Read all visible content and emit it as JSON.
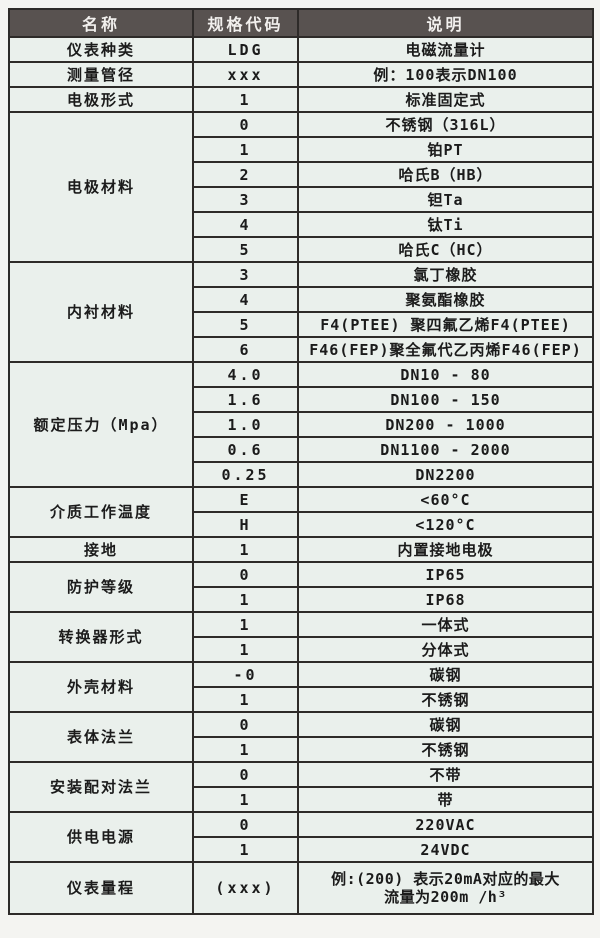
{
  "colors": {
    "header_bg": "#585250",
    "header_text": "#f2f0ee",
    "cell_bg": "#eaf0ec",
    "border": "#2e2b29",
    "page_bg": "#f4f4f1",
    "bottom_strip": "#bcbbb8"
  },
  "table": {
    "headers": [
      "名称",
      "规格代码",
      "说明"
    ],
    "sections": [
      {
        "name": "仪表种类",
        "rows": [
          {
            "code": "LDG",
            "desc": "电磁流量计"
          }
        ]
      },
      {
        "name": "测量管径",
        "rows": [
          {
            "code": "xxx",
            "desc": "例：100表示DN100"
          }
        ]
      },
      {
        "name": "电极形式",
        "rows": [
          {
            "code": "1",
            "desc": "标准固定式"
          }
        ]
      },
      {
        "name": "电极材料",
        "rows": [
          {
            "code": "0",
            "desc": "不锈钢（316L）"
          },
          {
            "code": "1",
            "desc": "铂PT"
          },
          {
            "code": "2",
            "desc": "哈氏B（HB）"
          },
          {
            "code": "3",
            "desc": "钽Ta"
          },
          {
            "code": "4",
            "desc": "钛Ti"
          },
          {
            "code": "5",
            "desc": "哈氏C（HC）"
          }
        ]
      },
      {
        "name": "内衬材料",
        "rows": [
          {
            "code": "3",
            "desc": "氯丁橡胶"
          },
          {
            "code": "4",
            "desc": "聚氨酯橡胶"
          },
          {
            "code": "5",
            "desc": "F4(PTEE) 聚四氟乙烯F4(PTEE)"
          },
          {
            "code": "6",
            "desc": "F46(FEP)聚全氟代乙丙烯F46(FEP)"
          }
        ]
      },
      {
        "name": "额定压力（Mpa）",
        "rows": [
          {
            "code": "4.0",
            "desc": "DN10 - 80"
          },
          {
            "code": "1.6",
            "desc": "DN100 - 150"
          },
          {
            "code": "1.0",
            "desc": "DN200 - 1000"
          },
          {
            "code": "0.6",
            "desc": "DN1100 - 2000"
          },
          {
            "code": "0.25",
            "desc": "DN2200"
          }
        ]
      },
      {
        "name": "介质工作温度",
        "rows": [
          {
            "code": "E",
            "desc": "<60°C"
          },
          {
            "code": "H",
            "desc": "<120°C"
          }
        ]
      },
      {
        "name": "接地",
        "rows": [
          {
            "code": "1",
            "desc": "内置接地电极"
          }
        ]
      },
      {
        "name": "防护等级",
        "rows": [
          {
            "code": "0",
            "desc": "IP65"
          },
          {
            "code": "1",
            "desc": "IP68"
          }
        ]
      },
      {
        "name": "转换器形式",
        "rows": [
          {
            "code": "1",
            "desc": "一体式"
          },
          {
            "code": "1",
            "desc": "分体式"
          }
        ]
      },
      {
        "name": "外壳材料",
        "rows": [
          {
            "code": "-0",
            "desc": "碳钢"
          },
          {
            "code": "1",
            "desc": "不锈钢"
          }
        ]
      },
      {
        "name": "表体法兰",
        "rows": [
          {
            "code": "0",
            "desc": "碳钢"
          },
          {
            "code": "1",
            "desc": "不锈钢"
          }
        ]
      },
      {
        "name": "安装配对法兰",
        "rows": [
          {
            "code": "0",
            "desc": "不带"
          },
          {
            "code": "1",
            "desc": "带"
          }
        ]
      },
      {
        "name": "供电电源",
        "rows": [
          {
            "code": "0",
            "desc": "220VAC"
          },
          {
            "code": "1",
            "desc": "24VDC"
          }
        ]
      },
      {
        "name": "仪表量程",
        "tall": true,
        "rows": [
          {
            "code": "(xxx)",
            "desc_lines": [
              "例:(200) 表示20mA对应的最大",
              "流量为200m /h³"
            ]
          }
        ]
      }
    ]
  }
}
